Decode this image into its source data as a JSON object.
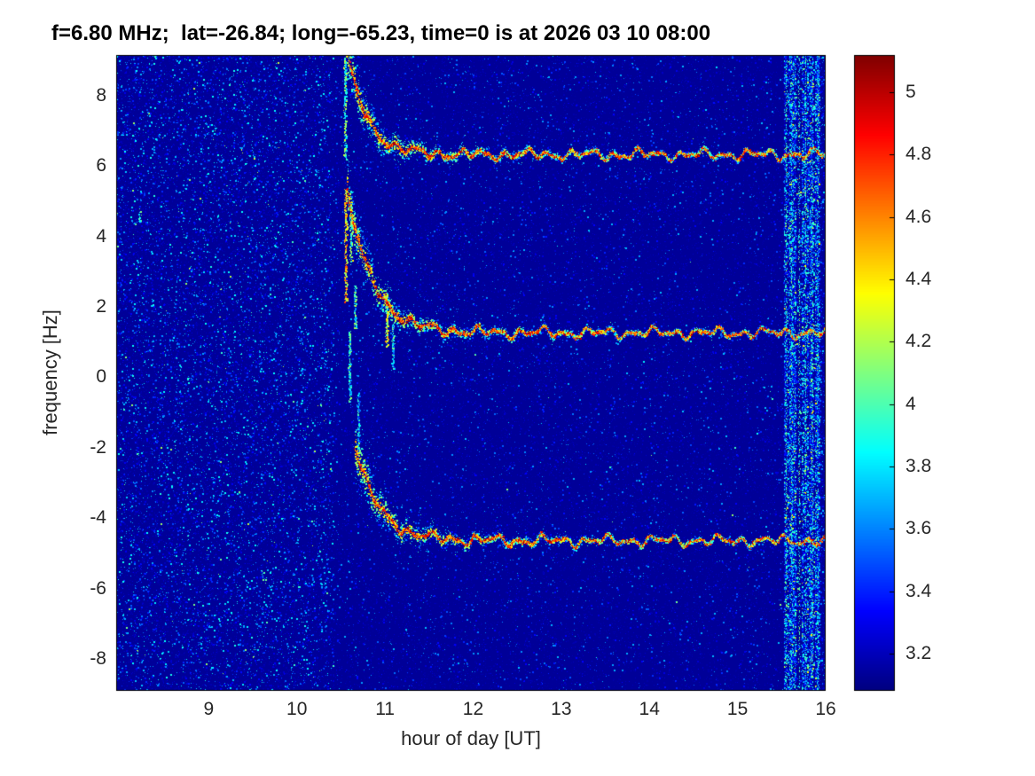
{
  "chart_data": {
    "type": "heatmap",
    "title": "f=6.80 MHz;  lat=-26.84; long=-65.23, time=0 is at 2026 03 10 08:00",
    "xlabel": "hour of day [UT]",
    "ylabel": "frequency [Hz]",
    "xlim": [
      7.95,
      16.0
    ],
    "ylim": [
      -8.9,
      9.15
    ],
    "xticks": [
      {
        "v": 9,
        "label": "9"
      },
      {
        "v": 10,
        "label": "10"
      },
      {
        "v": 11,
        "label": "11"
      },
      {
        "v": 12,
        "label": "12"
      },
      {
        "v": 13,
        "label": "13"
      },
      {
        "v": 14,
        "label": "14"
      },
      {
        "v": 15,
        "label": "15"
      },
      {
        "v": 16,
        "label": "16"
      }
    ],
    "yticks": [
      {
        "v": 8,
        "label": "8"
      },
      {
        "v": 6,
        "label": "6"
      },
      {
        "v": 4,
        "label": "4"
      },
      {
        "v": 2,
        "label": "2"
      },
      {
        "v": 0,
        "label": "0"
      },
      {
        "v": -2,
        "label": "-2"
      },
      {
        "v": -4,
        "label": "-4"
      },
      {
        "v": -6,
        "label": "-6"
      },
      {
        "v": -8,
        "label": "-8"
      }
    ],
    "colorbar": {
      "colormap": "jet",
      "range": [
        3.08,
        5.12
      ],
      "ticks": [
        {
          "v": 5,
          "label": "5"
        },
        {
          "v": 4.8,
          "label": "4.8"
        },
        {
          "v": 4.6,
          "label": "4.6"
        },
        {
          "v": 4.4,
          "label": "4.4"
        },
        {
          "v": 4.2,
          "label": "4.2"
        },
        {
          "v": 4,
          "label": "4"
        },
        {
          "v": 3.8,
          "label": "3.8"
        },
        {
          "v": 3.6,
          "label": "3.6"
        },
        {
          "v": 3.4,
          "label": "3.4"
        },
        {
          "v": 3.2,
          "label": "3.2"
        }
      ]
    },
    "background_value": 3.13,
    "noise_regions": [
      {
        "x0": 7.95,
        "x1": 10.42,
        "density": 0.1,
        "v_lo": 3.16,
        "v_hi": 3.9,
        "bright_prob": 0.01,
        "bright_hi": 4.25,
        "streaky": false
      },
      {
        "x0": 10.42,
        "x1": 15.53,
        "density": 0.035,
        "v_lo": 3.15,
        "v_hi": 3.72,
        "bright_prob": 0.004,
        "bright_hi": 4.15,
        "streaky": false
      },
      {
        "x0": 15.53,
        "x1": 15.93,
        "density": 0.4,
        "v_lo": 3.25,
        "v_hi": 4.05,
        "bright_prob": 0.05,
        "bright_hi": 4.45,
        "streaky": true
      },
      {
        "x0": 15.93,
        "x1": 16.0,
        "density": 0.12,
        "v_lo": 3.2,
        "v_hi": 3.8,
        "bright_prob": 0.01,
        "bright_hi": 4.0,
        "streaky": false
      }
    ],
    "faint_columns": {
      "x_start": 11.15,
      "x_end": 13.3,
      "spacing": 0.125,
      "density": 0.02
    },
    "tall_columns": [
      {
        "t": 10.47,
        "density": 0.02
      },
      {
        "t": 12.32,
        "density": 0.02
      },
      {
        "t": 13.55,
        "density": 0.018
      },
      {
        "t": 14.58,
        "density": 0.028
      },
      {
        "t": 15.12,
        "density": 0.015
      }
    ],
    "horizontal_line": {
      "f": 1.05,
      "x0": 7.95,
      "x1": 10.62,
      "density": 0.06
    },
    "spots": [
      {
        "t": 8.22,
        "f": 4.6,
        "v": 3.95,
        "n": 16,
        "spread": 0.18
      },
      {
        "t": 9.62,
        "f": -5.62,
        "v": 4.0,
        "n": 12,
        "spread": 0.15
      },
      {
        "t": 8.77,
        "f": -0.05,
        "v": 3.8,
        "n": 8,
        "spread": 0.12
      },
      {
        "t": 8.9,
        "f": -7.6,
        "v": 3.7,
        "n": 7,
        "spread": 0.12
      },
      {
        "t": 10.05,
        "f": 0.2,
        "v": 3.75,
        "n": 7,
        "spread": 0.1
      },
      {
        "t": 8.35,
        "f": 2.1,
        "v": 3.7,
        "n": 6,
        "spread": 0.1
      }
    ],
    "streaks": [
      {
        "t": 10.555,
        "f0": 2.15,
        "f1": 5.35,
        "v": 4.45,
        "w": 1.6
      },
      {
        "t": 10.615,
        "f0": 3.3,
        "f1": 5.0,
        "v": 4.15,
        "w": 1.4
      },
      {
        "t": 10.6,
        "f0": -0.7,
        "f1": 1.3,
        "v": 3.85,
        "w": 1.4
      },
      {
        "t": 10.55,
        "f0": 6.2,
        "f1": 9.1,
        "v": 4.0,
        "w": 1.6
      },
      {
        "t": 11.02,
        "f0": 0.9,
        "f1": 2.4,
        "v": 4.3,
        "w": 1.5
      },
      {
        "t": 11.09,
        "f0": 0.2,
        "f1": 1.5,
        "v": 3.8,
        "w": 1.2
      },
      {
        "t": 10.7,
        "f0": -2.1,
        "f1": -0.4,
        "v": 3.7,
        "w": 1.2
      },
      {
        "t": 10.66,
        "f0": 1.4,
        "f1": 2.6,
        "v": 3.9,
        "w": 1.2
      }
    ],
    "band_lines": [
      {
        "t": 15.555,
        "v": 3.95
      },
      {
        "t": 15.615,
        "v": 3.85
      },
      {
        "t": 15.7,
        "v": 4.0
      },
      {
        "t": 15.775,
        "v": 3.9
      },
      {
        "t": 15.85,
        "v": 3.95
      },
      {
        "t": 15.91,
        "v": 3.8
      }
    ],
    "traces": [
      {
        "name": "upper-doppler-trace",
        "t0": 10.52,
        "t1": 16.0,
        "f_inf": 6.33,
        "amp": 3.6,
        "tau": 0.22
      },
      {
        "name": "middle-doppler-trace",
        "t0": 10.57,
        "t1": 16.0,
        "f_inf": 1.27,
        "amp": 4.1,
        "tau": 0.28
      },
      {
        "name": "lower-doppler-trace",
        "t0": 10.66,
        "t1": 16.0,
        "f_inf": -4.63,
        "amp": 2.7,
        "tau": 0.26
      }
    ]
  }
}
